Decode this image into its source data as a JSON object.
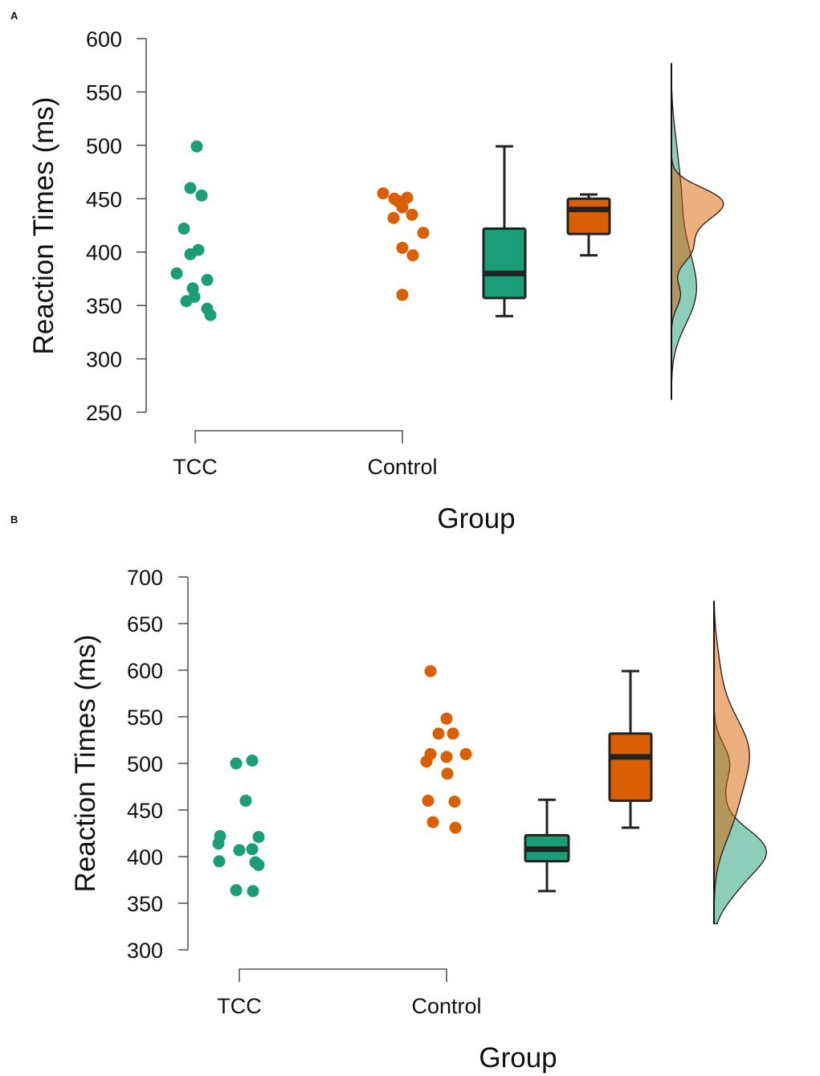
{
  "chart_data": [
    {
      "panel": "A",
      "type": "raincloud",
      "title": "",
      "xlabel": "Group",
      "ylabel": "Reaction Times (ms)",
      "ylim": [
        250,
        600
      ],
      "yticks": [
        250,
        300,
        350,
        400,
        450,
        500,
        550,
        600
      ],
      "categories": [
        "TCC",
        "Control"
      ],
      "colors": {
        "TCC": "#1b9e77",
        "Control": "#d95f02"
      },
      "points": {
        "TCC": [
          499,
          460,
          453,
          422,
          402,
          398,
          380,
          374,
          366,
          358,
          354,
          347,
          341
        ],
        "Control": [
          455,
          450,
          448,
          451,
          442,
          435,
          432,
          418,
          404,
          397,
          360
        ]
      },
      "boxplots": {
        "TCC": {
          "min": 340,
          "q1": 357,
          "median": 380,
          "q3": 422,
          "max": 499
        },
        "Control": {
          "min": 397,
          "q1": 417,
          "median": 440,
          "q3": 450,
          "max": 454
        }
      },
      "density_range": [
        262,
        577
      ]
    },
    {
      "panel": "B",
      "type": "raincloud",
      "title": "",
      "xlabel": "Group",
      "ylabel": "Reaction Times (ms)",
      "ylim": [
        300,
        700
      ],
      "yticks": [
        300,
        350,
        400,
        450,
        500,
        550,
        600,
        650,
        700
      ],
      "categories": [
        "TCC",
        "Control"
      ],
      "colors": {
        "TCC": "#1b9e77",
        "Control": "#d95f02"
      },
      "points": {
        "TCC": [
          503,
          500,
          460,
          422,
          421,
          414,
          408,
          407,
          395,
          394,
          391,
          364,
          363
        ],
        "Control": [
          599,
          548,
          532,
          532,
          510,
          510,
          507,
          502,
          489,
          460,
          459,
          437,
          431
        ]
      },
      "boxplots": {
        "TCC": {
          "min": 363,
          "q1": 395,
          "median": 408,
          "q3": 423,
          "max": 461
        },
        "Control": {
          "min": 431,
          "q1": 460,
          "median": 507,
          "q3": 532,
          "max": 599
        }
      },
      "density_range": [
        328,
        674
      ]
    }
  ]
}
